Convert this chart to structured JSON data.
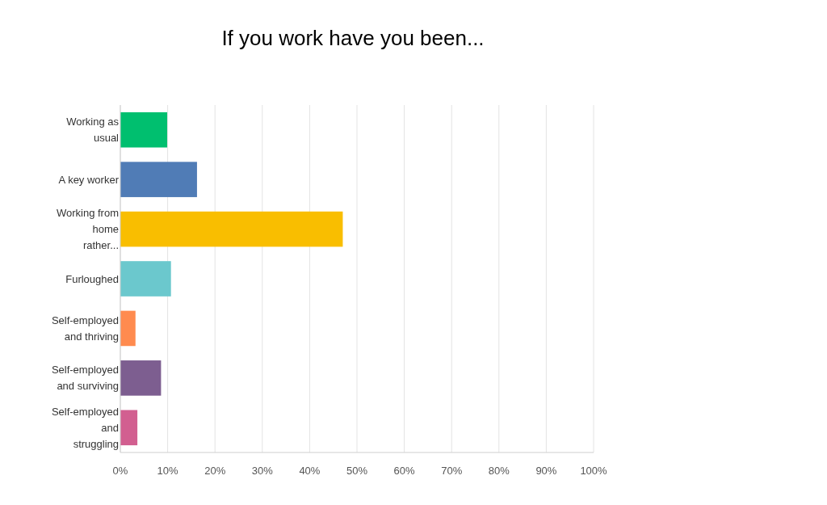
{
  "chart_data": {
    "type": "bar",
    "orientation": "horizontal",
    "title": "If you work have you been...",
    "categories": [
      "Working as usual",
      "A key worker",
      "Working from home rather...",
      "Furloughed",
      "Self-employed and thriving",
      "Self-employed and surviving",
      "Self-employed and struggling"
    ],
    "values": [
      9.9,
      16.2,
      47.0,
      10.7,
      3.2,
      8.6,
      3.6
    ],
    "colors": [
      "#00bf6f",
      "#507cb6",
      "#f9be00",
      "#6bc8cd",
      "#ff8b4f",
      "#7d5e90",
      "#d25f90"
    ],
    "xlim": [
      0,
      100
    ],
    "xticks": [
      {
        "value": 0,
        "label": "0%"
      },
      {
        "value": 10,
        "label": "10%"
      },
      {
        "value": 20,
        "label": "20%"
      },
      {
        "value": 30,
        "label": "30%"
      },
      {
        "value": 40,
        "label": "40%"
      },
      {
        "value": 50,
        "label": "50%"
      },
      {
        "value": 60,
        "label": "60%"
      },
      {
        "value": 70,
        "label": "70%"
      },
      {
        "value": 80,
        "label": "80%"
      },
      {
        "value": 90,
        "label": "90%"
      },
      {
        "value": 100,
        "label": "100%"
      }
    ],
    "grid": "x"
  }
}
